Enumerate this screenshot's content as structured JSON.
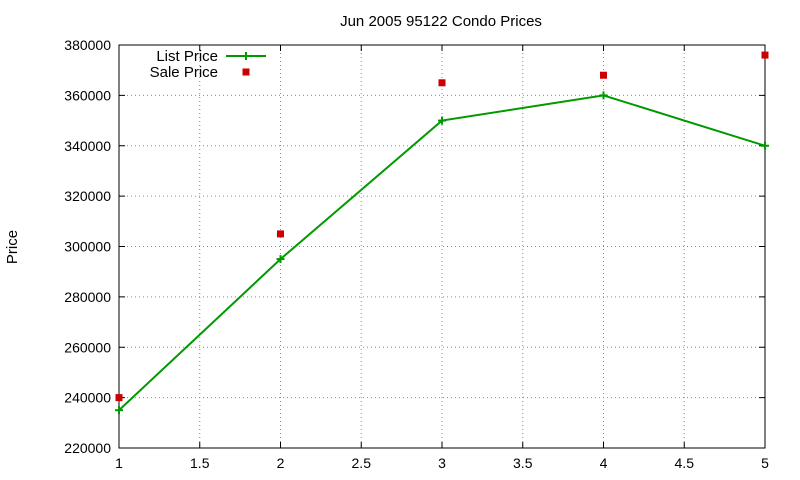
{
  "chart_data": {
    "type": "line",
    "title": "Jun 2005 95122 Condo Prices",
    "xlabel": "",
    "ylabel": "Price",
    "xlim": [
      1,
      5
    ],
    "ylim": [
      220000,
      380000
    ],
    "xticks": [
      1,
      1.5,
      2,
      2.5,
      3,
      3.5,
      4,
      4.5,
      5
    ],
    "yticks": [
      220000,
      240000,
      260000,
      280000,
      300000,
      320000,
      340000,
      360000,
      380000
    ],
    "grid": true,
    "legend_position": "top-left",
    "series": [
      {
        "name": "List Price",
        "style": "line+cross",
        "color": "#009900",
        "x": [
          1,
          2,
          3,
          4,
          5
        ],
        "y": [
          235000,
          295000,
          350000,
          360000,
          340000
        ]
      },
      {
        "name": "Sale Price",
        "style": "square-points",
        "color": "#cc0000",
        "x": [
          1,
          2,
          3,
          4,
          5
        ],
        "y": [
          240000,
          305000,
          365000,
          368000,
          376000
        ]
      }
    ]
  }
}
